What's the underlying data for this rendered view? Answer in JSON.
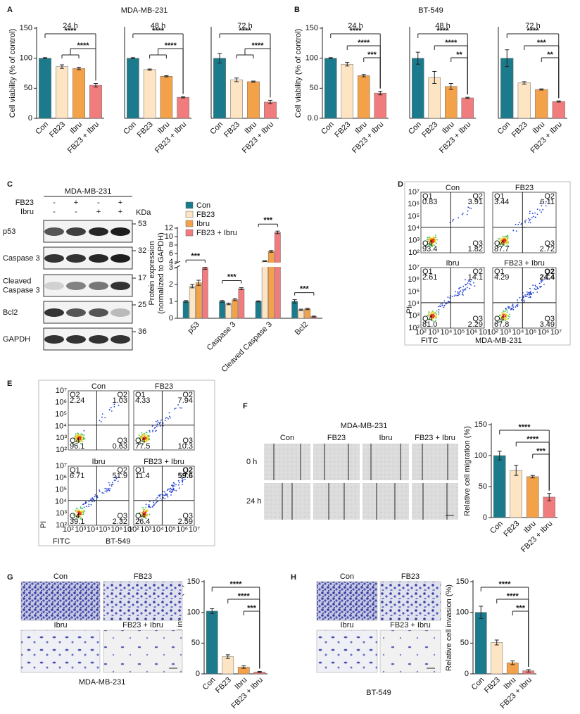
{
  "labels": [
    "A",
    "B",
    "C",
    "D",
    "E",
    "F",
    "G",
    "H"
  ],
  "panel_a": {
    "title": "MDA-MB-231"
  },
  "panel_b": {
    "title": "BT-549"
  },
  "panel_c": {
    "blot": {
      "title": "MDA-MB-231",
      "unit": "KDa",
      "treatments": [
        {
          "name": "FB23",
          "signs": [
            "-",
            "+",
            "-",
            "+"
          ]
        },
        {
          "name": "Ibru",
          "signs": [
            "-",
            "-",
            "+",
            "+"
          ]
        }
      ],
      "rows": [
        {
          "name_lines": [
            "p53"
          ],
          "size": 53
        },
        {
          "name_lines": [
            "Caspase 3"
          ],
          "size": 32
        },
        {
          "name_lines": [
            "Cleaved",
            "Caspase 3"
          ],
          "size": 17
        },
        {
          "name_lines": [
            "Bcl2"
          ],
          "size": 25
        },
        {
          "name_lines": [
            "GAPDH"
          ],
          "size": 36
        }
      ]
    }
  },
  "panel_d": {
    "y_label": "PI",
    "x_label": "FITC",
    "cell_line": "MDA-MB-231",
    "ticks": [
      "10²",
      "10³",
      "10⁴",
      "10⁵",
      "10⁶",
      "10⁷"
    ],
    "plots": [
      {
        "title": "Con",
        "quadrants": [
          [
            "Q1",
            "0.83"
          ],
          [
            "Q2",
            "3.91"
          ],
          [
            "Q4",
            "93.4"
          ],
          [
            "Q3",
            "1.82"
          ]
        ]
      },
      {
        "title": "FB23",
        "quadrants": [
          [
            "Q1",
            "3.44"
          ],
          [
            "Q2",
            "6.11"
          ],
          [
            "Q4",
            "87.7"
          ],
          [
            "Q3",
            "2.72"
          ]
        ]
      },
      {
        "title": "Ibru",
        "quadrants": [
          [
            "Q1",
            "2.61"
          ],
          [
            "Q2",
            "14.1"
          ],
          [
            "Q4",
            "81.0"
          ],
          [
            "Q3",
            "2.29"
          ]
        ]
      },
      {
        "title": "FB23 + Ibru",
        "quadrants": [
          [
            "Q1",
            "4.29"
          ],
          [
            "Q2",
            "24.4"
          ],
          [
            "Q4",
            "67.8"
          ],
          [
            "Q3",
            "3.49"
          ]
        ]
      }
    ]
  },
  "panel_e": {
    "y_label": "PI",
    "x_label": "FITC",
    "cell_line": "BT-549",
    "ticks": [
      "10²",
      "10³",
      "10⁴",
      "10⁵",
      "10⁶",
      "10⁷"
    ],
    "plots": [
      {
        "title": "Con",
        "quadrants": [
          [
            "Q2",
            "2.24"
          ],
          [
            "Q2",
            "1.03"
          ],
          [
            "Q4",
            "96.1"
          ],
          [
            "Q3",
            "0.63"
          ]
        ]
      },
      {
        "title": "FB23",
        "quadrants": [
          [
            "Q1",
            "4.33"
          ],
          [
            "Q2",
            "7.94"
          ],
          [
            "Q4",
            "77.5"
          ],
          [
            "Q3",
            "10.3"
          ]
        ]
      },
      {
        "title": "Ibru",
        "quadrants": [
          [
            "Q1",
            "6.71"
          ],
          [
            "Q2",
            "51.9"
          ],
          [
            "Q4",
            "39.1"
          ],
          [
            "Q3",
            "2.32"
          ]
        ]
      },
      {
        "title": "FB23 + Ibru",
        "quadrants": [
          [
            "Q1",
            "11.4"
          ],
          [
            "Q2",
            "59.6"
          ],
          [
            "Q4",
            "26.4"
          ],
          [
            "Q3",
            "2.59"
          ]
        ]
      }
    ]
  },
  "panel_f": {
    "title": "MDA-MB-231",
    "columns": [
      "Con",
      "FB23",
      "Ibru",
      "FB23 + Ibru"
    ],
    "rows": [
      "0 h",
      "24 h"
    ]
  },
  "panel_g": {
    "images": [
      "Con",
      "FB23",
      "Ibru",
      "FB23 + Ibru"
    ],
    "caption": "MDA-MB-231"
  },
  "panel_h": {
    "images": [
      "Con",
      "FB23",
      "Ibru",
      "FB23 + Ibru"
    ],
    "caption": "BT-549"
  },
  "chart_data": [
    {
      "type": "bar",
      "title": "24 h",
      "categories": [
        "Con",
        "FB23",
        "Ibru",
        "FB23 + Ibru"
      ],
      "values": [
        100,
        86,
        83,
        55
      ],
      "errors": [
        1,
        3,
        2,
        3
      ],
      "colors": [
        "#1b7b8c",
        "#fde4c2",
        "#f4a24a",
        "#f07c7e"
      ],
      "ylim": [
        0,
        150
      ],
      "yticks": [
        0,
        50,
        100,
        150
      ],
      "ylabel": "Cell viability (% of control)",
      "annotations": [
        "****",
        "****"
      ]
    },
    {
      "type": "bar",
      "title": "48 h",
      "categories": [
        "Con",
        "FB23",
        "Ibru",
        "FB23 + Ibru"
      ],
      "values": [
        100,
        81,
        70,
        35
      ],
      "errors": [
        1,
        1,
        1,
        1
      ],
      "colors": [
        "#1b7b8c",
        "#fde4c2",
        "#f4a24a",
        "#f07c7e"
      ],
      "ylim": [
        0,
        150
      ],
      "annotations": [
        "****",
        "****"
      ]
    },
    {
      "type": "bar",
      "title": "72 h",
      "categories": [
        "Con",
        "FB23",
        "Ibru",
        "FB23 + Ibru"
      ],
      "values": [
        100,
        64,
        61,
        27
      ],
      "errors": [
        8,
        3,
        1,
        3
      ],
      "colors": [
        "#1b7b8c",
        "#fde4c2",
        "#f4a24a",
        "#f07c7e"
      ],
      "ylim": [
        0,
        150
      ],
      "annotations": [
        "****",
        "****"
      ]
    },
    {
      "type": "bar",
      "title": "24 h",
      "categories": [
        "Con",
        "FB23",
        "Ibru",
        "FB23 + Ibru"
      ],
      "values": [
        100,
        90,
        71,
        42
      ],
      "errors": [
        1,
        3,
        2,
        3
      ],
      "colors": [
        "#1b7b8c",
        "#fde4c2",
        "#f4a24a",
        "#f07c7e"
      ],
      "ylim": [
        0,
        150
      ],
      "yticks": [
        {
          "value": 0,
          "label": "0.0"
        },
        50,
        100,
        150
      ],
      "ylabel": "Cell viability (% of control)",
      "annotations": [
        "****",
        "****",
        "***"
      ]
    },
    {
      "type": "bar",
      "title": "48 h",
      "categories": [
        "Con",
        "FB23",
        "Ibru",
        "FB23 + Ibru"
      ],
      "values": [
        100,
        68,
        53,
        34
      ],
      "errors": [
        10,
        10,
        5,
        1
      ],
      "colors": [
        "#1b7b8c",
        "#fde4c2",
        "#f4a24a",
        "#f07c7e"
      ],
      "ylim": [
        0,
        150
      ],
      "annotations": [
        "****",
        "****",
        "**"
      ]
    },
    {
      "type": "bar",
      "title": "72 h",
      "categories": [
        "Con",
        "FB23",
        "Ibru",
        "FB23 + Ibru"
      ],
      "values": [
        100,
        59,
        48,
        28
      ],
      "errors": [
        14,
        2,
        1,
        1
      ],
      "colors": [
        "#1b7b8c",
        "#fde4c2",
        "#f4a24a",
        "#f07c7e"
      ],
      "ylim": [
        0,
        150
      ],
      "annotations": [
        "****",
        "***",
        "**"
      ]
    },
    {
      "type": "grouped_bar",
      "ylabel": [
        "Protein expression",
        "(normalized to GAPDH)"
      ],
      "categories": [
        "p53",
        "Caspase 3",
        "Cleaved Caspase 3",
        "Bcl2"
      ],
      "series": [
        {
          "name": "Con",
          "color": "#1b7b8c",
          "values": [
            1,
            1,
            1,
            1
          ],
          "errors": [
            0.05,
            0.05,
            0.03,
            0.1
          ]
        },
        {
          "name": "FB23",
          "color": "#fde4c2",
          "values": [
            1.9,
            0.85,
            4.2,
            0.5
          ],
          "errors": [
            0.1,
            0.05,
            0.1,
            0.04
          ]
        },
        {
          "name": "Ibru",
          "color": "#f4a24a",
          "values": [
            2.1,
            1.1,
            6.5,
            0.55
          ],
          "errors": [
            0.15,
            0.06,
            0.2,
            0.04
          ]
        },
        {
          "name": "FB23 + Ibru",
          "color": "#f07c7e",
          "values": [
            3.0,
            1.75,
            11,
            0.1
          ],
          "errors": [
            0.1,
            0.06,
            0.3,
            0.03
          ]
        }
      ],
      "ylim": [
        0,
        12
      ],
      "ybreak": [
        3,
        4
      ],
      "yticks": [
        0,
        1,
        2,
        3,
        4,
        6,
        8,
        10,
        12
      ],
      "annotations": [
        "***",
        "***",
        "***",
        "***"
      ]
    },
    {
      "type": "bar",
      "categories": [
        "Con",
        "FB23",
        "Ibru",
        "FB23 + Ibru"
      ],
      "values": [
        100,
        76,
        66,
        33
      ],
      "errors": [
        7,
        8,
        2,
        6
      ],
      "colors": [
        "#1b7b8c",
        "#fde4c2",
        "#f4a24a",
        "#f07c7e"
      ],
      "ylim": [
        0,
        150
      ],
      "yticks": [
        0,
        50,
        100,
        150
      ],
      "ylabel": "Relative cell migration (%)",
      "annotations": [
        "****",
        "****",
        "***"
      ]
    },
    {
      "type": "bar",
      "categories": [
        "Con",
        "FB23",
        "Ibru",
        "FB23 + Ibru"
      ],
      "values": [
        102,
        28,
        11,
        3
      ],
      "errors": [
        4,
        3,
        2,
        1
      ],
      "colors": [
        "#1b7b8c",
        "#fde4c2",
        "#f4a24a",
        "#f07c7e"
      ],
      "ylim": [
        0,
        150
      ],
      "yticks": [
        0,
        50,
        100,
        150
      ],
      "ylabel": "Relative cell invasion (%)",
      "annotations": [
        "****",
        "****",
        "***"
      ]
    },
    {
      "type": "bar",
      "categories": [
        "Con",
        "FB23",
        "Ibru",
        "FB23 + Ibru"
      ],
      "values": [
        100,
        51,
        18,
        5
      ],
      "errors": [
        10,
        4,
        3,
        2
      ],
      "colors": [
        "#1b7b8c",
        "#fde4c2",
        "#f4a24a",
        "#f07c7e"
      ],
      "ylim": [
        0,
        150
      ],
      "yticks": [
        0,
        50,
        100,
        150
      ],
      "ylabel": "Relative cell invasion (%)",
      "annotations": [
        "****",
        "****",
        "***"
      ]
    }
  ]
}
